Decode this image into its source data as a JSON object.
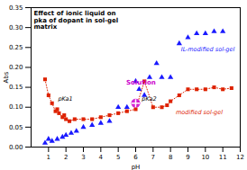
{
  "chart_data": {
    "type": "line",
    "title": "Effect of ionic liquid on\npka of dopant in sol-gel\nmatrix",
    "xlabel": "pH",
    "ylabel": "Abs",
    "xlim": [
      0,
      12
    ],
    "ylim": [
      0,
      0.35
    ],
    "xticks": [
      1,
      2,
      3,
      4,
      5,
      6,
      7,
      8,
      9,
      10,
      11,
      12
    ],
    "yticks": [
      0,
      0.05,
      0.1,
      0.15,
      0.2,
      0.25,
      0.3,
      0.35
    ],
    "series": [
      {
        "type": "scatter",
        "color": "#1a1aff",
        "marker": "triangle",
        "x": [
          0.8,
          1.0,
          1.2,
          1.5,
          1.8,
          2.0,
          2.3,
          2.6,
          3.0,
          3.5,
          4.0,
          4.5,
          5.0,
          5.5,
          6.0,
          6.2,
          6.5,
          6.8,
          7.2,
          7.5,
          8.0,
          8.5,
          9.0,
          9.5,
          10.0,
          10.5,
          11.0
        ],
        "values": [
          0.01,
          0.02,
          0.015,
          0.02,
          0.025,
          0.03,
          0.035,
          0.04,
          0.05,
          0.055,
          0.06,
          0.065,
          0.1,
          0.1,
          0.165,
          0.145,
          0.13,
          0.175,
          0.21,
          0.175,
          0.175,
          0.26,
          0.275,
          0.285,
          0.285,
          0.29,
          0.29
        ]
      },
      {
        "type": "line",
        "color": "#dd2200",
        "marker": "square",
        "line_style": "dotted",
        "x": [
          0.8,
          1.0,
          1.2,
          1.4,
          1.5,
          1.6,
          1.8,
          1.9,
          2.0,
          2.2,
          2.5,
          3.0,
          3.5,
          4.0,
          4.5,
          5.0,
          5.5,
          6.0,
          6.5,
          7.0,
          7.5,
          7.8,
          8.0,
          8.5,
          9.0,
          9.5,
          10.0,
          10.5,
          11.0,
          11.5
        ],
        "values": [
          0.17,
          0.13,
          0.11,
          0.09,
          0.095,
          0.085,
          0.075,
          0.08,
          0.07,
          0.065,
          0.07,
          0.07,
          0.07,
          0.075,
          0.08,
          0.085,
          0.09,
          0.095,
          0.165,
          0.1,
          0.1,
          0.105,
          0.115,
          0.13,
          0.145,
          0.145,
          0.145,
          0.15,
          0.145,
          0.148
        ]
      },
      {
        "type": "scatter",
        "color": "#cc00cc",
        "marker": "circle",
        "x": [
          6.0
        ],
        "values": [
          0.11
        ]
      }
    ],
    "annotations": [
      {
        "text": "Solution",
        "x": 6.3,
        "y": 0.158,
        "color": "#cc00cc"
      },
      {
        "text": "pKa1",
        "x": 1.55,
        "y": 0.122
      },
      {
        "text": "pKa2",
        "x": 6.35,
        "y": 0.122
      },
      {
        "text": "IL-modified sol-gel",
        "x": 8.6,
        "y": 0.245,
        "color": "#1a1aff"
      },
      {
        "text": "modified sol-gel",
        "x": 8.3,
        "y": 0.088,
        "color": "#dd2200"
      }
    ]
  }
}
